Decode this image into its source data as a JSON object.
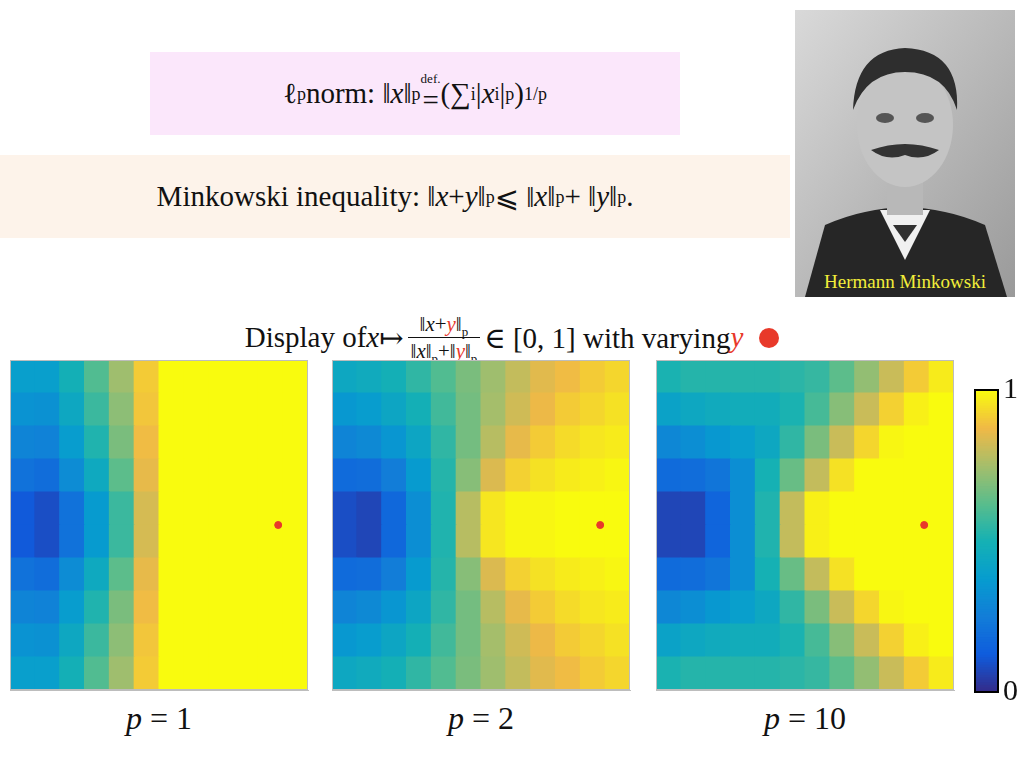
{
  "header": {
    "norm": [
      "ℓ",
      {
        "sup": "p"
      },
      " norm: ‖",
      {
        "i": "x"
      },
      "‖",
      {
        "sub": "p"
      },
      " ",
      {
        "over": "def.",
        "base": "="
      },
      " (∑",
      {
        "sub": "i"
      },
      " |",
      {
        "i": "x"
      },
      {
        "sub": "i"
      },
      "|",
      {
        "sup": "p"
      },
      ")",
      {
        "sup": "1/p"
      }
    ],
    "inequality": [
      "Minkowski inequality: ‖",
      {
        "i": "x"
      },
      " + ",
      {
        "i": "y"
      },
      "‖",
      {
        "sub": "p"
      },
      " ⩽ ‖",
      {
        "i": "x"
      },
      "‖",
      {
        "sub": "p"
      },
      " + ‖",
      {
        "i": "y"
      },
      "‖",
      {
        "sub": "p"
      },
      "."
    ],
    "photo_caption": "Hermann Minkowski"
  },
  "caption": [
    "Display of ",
    {
      "i": "x"
    },
    " ↦ ",
    {
      "num": [
        "‖",
        {
          "i": "x"
        },
        "+",
        {
          "red": "y"
        },
        "‖",
        {
          "sub": "p"
        }
      ],
      "den": [
        "‖",
        {
          "i": "x"
        },
        "‖",
        {
          "sub": "p"
        },
        "+‖",
        {
          "red": "y"
        },
        "‖",
        {
          "sub": "p"
        }
      ]
    },
    " ∈ [0, 1] with varying ",
    {
      "red": "y"
    }
  ],
  "colorbar": {
    "range": [
      0,
      1
    ],
    "ticks": [
      0,
      1
    ]
  },
  "chart_data": [
    {
      "type": "heatmap",
      "label": [
        {
          "i": "p"
        },
        " = 1"
      ],
      "tick_labels": false,
      "grid": false,
      "xlim": [
        -1,
        1
      ],
      "ylim": [
        -1,
        1
      ],
      "x": [
        -0.9167,
        -0.75,
        -0.5833,
        -0.4167,
        -0.25,
        -0.0833,
        0.0833,
        0.25,
        0.4167,
        0.5833,
        0.75,
        0.9167
      ],
      "y": [
        0.9,
        0.7,
        0.5,
        0.3,
        0.1,
        -0.1,
        -0.3,
        -0.5,
        -0.7,
        -0.9
      ],
      "z": [
        [
          0.39,
          0.39,
          0.49,
          0.61,
          0.74,
          0.91,
          1,
          1,
          1,
          1,
          1,
          1
        ],
        [
          0.34,
          0.33,
          0.44,
          0.57,
          0.71,
          0.9,
          1,
          1,
          1,
          1,
          1,
          1
        ],
        [
          0.28,
          0.27,
          0.38,
          0.52,
          0.68,
          0.88,
          1,
          1,
          1,
          1,
          1,
          1
        ],
        [
          0.21,
          0.19,
          0.31,
          0.45,
          0.63,
          0.86,
          1,
          1,
          1,
          1,
          1,
          1
        ],
        [
          0.12,
          0.09,
          0.21,
          0.37,
          0.57,
          0.83,
          1,
          1,
          1,
          1,
          1,
          1
        ],
        [
          0.12,
          0.09,
          0.21,
          0.37,
          0.57,
          0.83,
          1,
          1,
          1,
          1,
          1,
          1
        ],
        [
          0.21,
          0.19,
          0.31,
          0.45,
          0.63,
          0.86,
          1,
          1,
          1,
          1,
          1,
          1
        ],
        [
          0.28,
          0.27,
          0.38,
          0.52,
          0.68,
          0.88,
          1,
          1,
          1,
          1,
          1,
          1
        ],
        [
          0.34,
          0.33,
          0.44,
          0.57,
          0.71,
          0.9,
          1,
          1,
          1,
          1,
          1,
          1
        ],
        [
          0.39,
          0.39,
          0.49,
          0.61,
          0.74,
          0.91,
          1,
          1,
          1,
          1,
          1,
          1
        ]
      ],
      "point": {
        "x": 0.8,
        "y": 0,
        "color": "#e8392a"
      }
    },
    {
      "type": "heatmap",
      "label": [
        {
          "i": "p"
        },
        " = 2"
      ],
      "tick_labels": false,
      "grid": false,
      "xlim": [
        -1,
        1
      ],
      "ylim": [
        -1,
        1
      ],
      "x": [
        -0.9167,
        -0.75,
        -0.5833,
        -0.4167,
        -0.25,
        -0.0833,
        0.0833,
        0.25,
        0.4167,
        0.5833,
        0.75,
        0.9167
      ],
      "y": [
        0.9,
        0.7,
        0.5,
        0.3,
        0.1,
        -0.1,
        -0.3,
        -0.5,
        -0.7,
        -0.9
      ],
      "z": [
        [
          0.44,
          0.46,
          0.49,
          0.55,
          0.61,
          0.68,
          0.74,
          0.8,
          0.85,
          0.88,
          0.91,
          0.93
        ],
        [
          0.36,
          0.38,
          0.43,
          0.49,
          0.58,
          0.67,
          0.75,
          0.82,
          0.87,
          0.91,
          0.93,
          0.95
        ],
        [
          0.28,
          0.3,
          0.35,
          0.43,
          0.55,
          0.67,
          0.78,
          0.86,
          0.91,
          0.94,
          0.96,
          0.97
        ],
        [
          0.18,
          0.19,
          0.25,
          0.37,
          0.53,
          0.7,
          0.84,
          0.92,
          0.95,
          0.97,
          0.98,
          0.99
        ],
        [
          0.09,
          0.07,
          0.17,
          0.32,
          0.52,
          0.78,
          0.96,
          0.99,
          0.99,
          1,
          1,
          1
        ],
        [
          0.09,
          0.07,
          0.17,
          0.32,
          0.52,
          0.78,
          0.96,
          0.99,
          0.99,
          1,
          1,
          1
        ],
        [
          0.18,
          0.19,
          0.25,
          0.37,
          0.53,
          0.7,
          0.84,
          0.92,
          0.95,
          0.97,
          0.98,
          0.99
        ],
        [
          0.28,
          0.3,
          0.35,
          0.43,
          0.55,
          0.67,
          0.78,
          0.86,
          0.91,
          0.94,
          0.96,
          0.97
        ],
        [
          0.36,
          0.38,
          0.43,
          0.49,
          0.58,
          0.67,
          0.75,
          0.82,
          0.87,
          0.91,
          0.93,
          0.95
        ],
        [
          0.44,
          0.46,
          0.49,
          0.55,
          0.61,
          0.68,
          0.74,
          0.8,
          0.85,
          0.88,
          0.91,
          0.93
        ]
      ],
      "point": {
        "x": 0.8,
        "y": 0,
        "color": "#e8392a"
      }
    },
    {
      "type": "heatmap",
      "label": [
        {
          "i": "p"
        },
        " = 10"
      ],
      "tick_labels": false,
      "grid": false,
      "xlim": [
        -1,
        1
      ],
      "ylim": [
        -1,
        1
      ],
      "x": [
        -0.9167,
        -0.75,
        -0.5833,
        -0.4167,
        -0.25,
        -0.0833,
        0.0833,
        0.25,
        0.4167,
        0.5833,
        0.75,
        0.9167
      ],
      "y": [
        0.9,
        0.7,
        0.5,
        0.3,
        0.1,
        -0.1,
        -0.3,
        -0.5,
        -0.7,
        -0.9
      ],
      "z": [
        [
          0.51,
          0.53,
          0.53,
          0.53,
          0.53,
          0.54,
          0.56,
          0.63,
          0.72,
          0.81,
          0.91,
          0.97
        ],
        [
          0.41,
          0.44,
          0.46,
          0.47,
          0.47,
          0.51,
          0.59,
          0.7,
          0.81,
          0.92,
          0.98,
          1
        ],
        [
          0.29,
          0.32,
          0.36,
          0.39,
          0.44,
          0.55,
          0.68,
          0.81,
          0.93,
          0.99,
          1,
          1
        ],
        [
          0.18,
          0.19,
          0.22,
          0.32,
          0.5,
          0.65,
          0.8,
          0.95,
          1,
          1,
          1,
          1
        ],
        [
          0.07,
          0.07,
          0.16,
          0.32,
          0.52,
          0.8,
          0.98,
          1,
          1,
          1,
          1,
          1
        ],
        [
          0.07,
          0.07,
          0.16,
          0.32,
          0.52,
          0.8,
          0.98,
          1,
          1,
          1,
          1,
          1
        ],
        [
          0.18,
          0.19,
          0.22,
          0.32,
          0.5,
          0.65,
          0.8,
          0.95,
          1,
          1,
          1,
          1
        ],
        [
          0.29,
          0.32,
          0.36,
          0.39,
          0.44,
          0.55,
          0.68,
          0.81,
          0.93,
          0.99,
          1,
          1
        ],
        [
          0.41,
          0.44,
          0.46,
          0.47,
          0.47,
          0.51,
          0.59,
          0.7,
          0.81,
          0.92,
          0.98,
          1
        ],
        [
          0.51,
          0.53,
          0.53,
          0.53,
          0.53,
          0.54,
          0.56,
          0.63,
          0.72,
          0.81,
          0.91,
          0.97
        ]
      ],
      "point": {
        "x": 0.8,
        "y": 0,
        "color": "#e8392a"
      }
    }
  ]
}
